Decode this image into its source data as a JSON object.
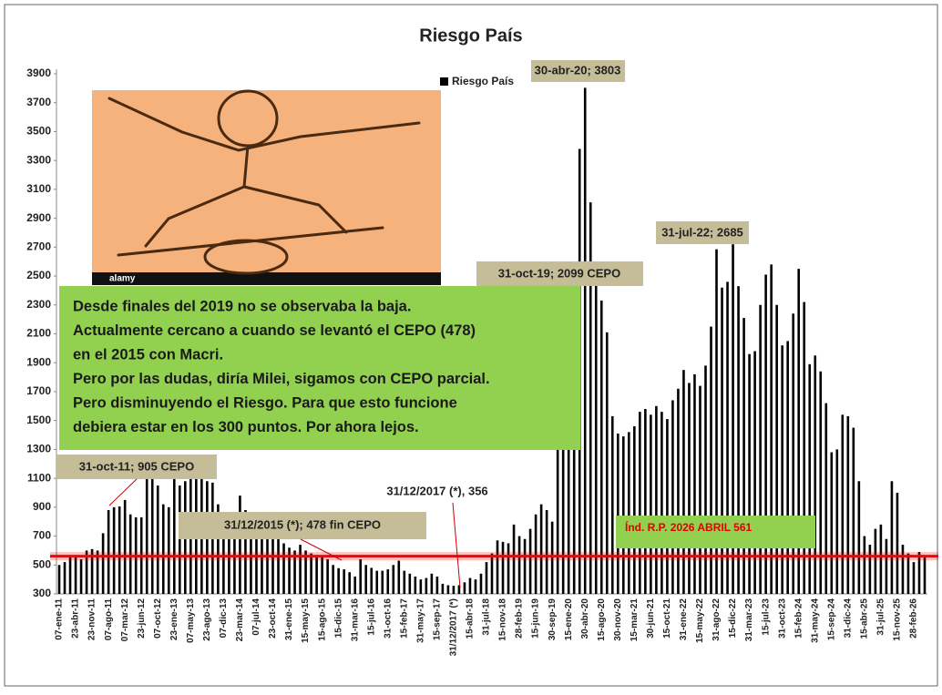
{
  "chart_data": {
    "type": "bar",
    "title": "Riesgo País",
    "series": [
      {
        "name": "Riesgo País",
        "color": "#000000",
        "values": [
          500,
          520,
          560,
          560,
          540,
          600,
          610,
          600,
          720,
          880,
          900,
          905,
          950,
          850,
          830,
          830,
          1100,
          1200,
          1050,
          920,
          900,
          1100,
          1050,
          1080,
          1150,
          1120,
          1100,
          1080,
          1070,
          920,
          800,
          820,
          780,
          980,
          880,
          850,
          800,
          750,
          720,
          700,
          680,
          650,
          620,
          600,
          640,
          600,
          580,
          560,
          560,
          540,
          500,
          478,
          470,
          450,
          420,
          540,
          500,
          480,
          460,
          460,
          470,
          500,
          530,
          460,
          440,
          420,
          400,
          410,
          440,
          420,
          370,
          360,
          356,
          360,
          380,
          410,
          400,
          440,
          520,
          580,
          670,
          660,
          650,
          780,
          700,
          680,
          750,
          850,
          920,
          880,
          800,
          1400,
          2099,
          2000,
          2300,
          3380,
          3803,
          3010,
          2500,
          2330,
          2110,
          1530,
          1410,
          1390,
          1420,
          1460,
          1560,
          1580,
          1540,
          1600,
          1560,
          1510,
          1640,
          1720,
          1850,
          1760,
          1820,
          1740,
          1880,
          2150,
          2685,
          2420,
          2460,
          2720,
          2430,
          2210,
          1960,
          1980,
          2300,
          2510,
          2580,
          2300,
          2020,
          2050,
          2240,
          2550,
          2320,
          1890,
          1950,
          1840,
          1620,
          1280,
          1300,
          1540,
          1530,
          1450,
          1080,
          700,
          640,
          750,
          780,
          680,
          1080,
          1000,
          640,
          580,
          520,
          590,
          561
        ]
      }
    ],
    "categories": [
      "07-ene-11",
      null,
      null,
      "23-abr-11",
      null,
      null,
      "23-nov-11",
      null,
      null,
      "07-ago-11",
      null,
      null,
      "07-mar-12",
      null,
      null,
      "23-jun-12",
      null,
      null,
      "07-oct-12",
      null,
      null,
      "23-ene-13",
      null,
      null,
      "07-may-13",
      null,
      null,
      "23-ago-13",
      null,
      null,
      "07-dic-13",
      null,
      null,
      "23-mar-14",
      null,
      null,
      "07-jul-14",
      null,
      null,
      "23-oct-14",
      null,
      null,
      "31-ene-15",
      null,
      null,
      "15-may-15",
      null,
      null,
      "15-ago-15",
      null,
      null,
      "15-dic-15",
      null,
      null,
      "31-mar-16",
      null,
      null,
      "15-jul-16",
      null,
      null,
      "31-oct-16",
      null,
      null,
      "15-feb-17",
      null,
      null,
      "31-may-17",
      null,
      null,
      "15-sep-17",
      null,
      null,
      "31/12/2017 (*)",
      null,
      null,
      "15-abr-18",
      null,
      null,
      "31-jul-18",
      null,
      null,
      "15-nov-18",
      null,
      null,
      "28-feb-19",
      null,
      null,
      "15-jun-19",
      null,
      null,
      "30-sep-19",
      null,
      null,
      "15-ene-20",
      null,
      null,
      "30-abr-20",
      null,
      null,
      "15-ago-20",
      null,
      null,
      "30-nov-20",
      null,
      null,
      "15-mar-21",
      null,
      null,
      "30-jun-21",
      null,
      null,
      "15-oct-21",
      null,
      null,
      "31-ene-22",
      null,
      null,
      "15-may-22",
      null,
      null,
      "31-ago-22",
      null,
      null,
      "15-dic-22",
      null,
      null,
      "31-mar-23",
      null,
      null,
      "15-jul-23",
      null,
      null,
      "31-oct-23",
      null,
      null,
      "15-feb-24",
      null,
      null,
      "31-may-24",
      null,
      null,
      "15-sep-24",
      null,
      null,
      "31-dic-24",
      null,
      null,
      "15-abr-25",
      null,
      null,
      "31-jul-25",
      null,
      null,
      "15-nov-25",
      null,
      null,
      "28-feb-26",
      null,
      null
    ],
    "ylim": [
      300,
      3900
    ],
    "yticks": [
      300,
      500,
      700,
      900,
      1100,
      1300,
      1500,
      1700,
      1900,
      2100,
      2300,
      2500,
      2700,
      2900,
      3100,
      3300,
      3500,
      3700,
      3900
    ],
    "reference_line": {
      "value": 561,
      "color": "#ff0000"
    },
    "annotations": [
      "30-abr-20; 3803",
      "31-jul-22; 2685",
      "31-oct-19; 2099 CEPO",
      "31-oct-11; 905  CEPO",
      "31/12/2015 (*); 478 fin CEPO",
      "31/12/2017 (*), 356",
      "Índ. R.P. 2026 ABRIL 561"
    ],
    "text_box": [
      "Desde finales del 2019 no se observaba la baja.",
      "Actualmente cercano a cuando se levantó el CEPO (478)",
      "en el 2015 con Macri.",
      "Pero por las dudas, diría Milei, sigamos con CEPO parcial.",
      "Pero disminuyendo el Riesgo. Para que esto funcione",
      "debiera estar  en los 300 puntos. Por ahora lejos."
    ],
    "image_watermark": "alamy"
  }
}
